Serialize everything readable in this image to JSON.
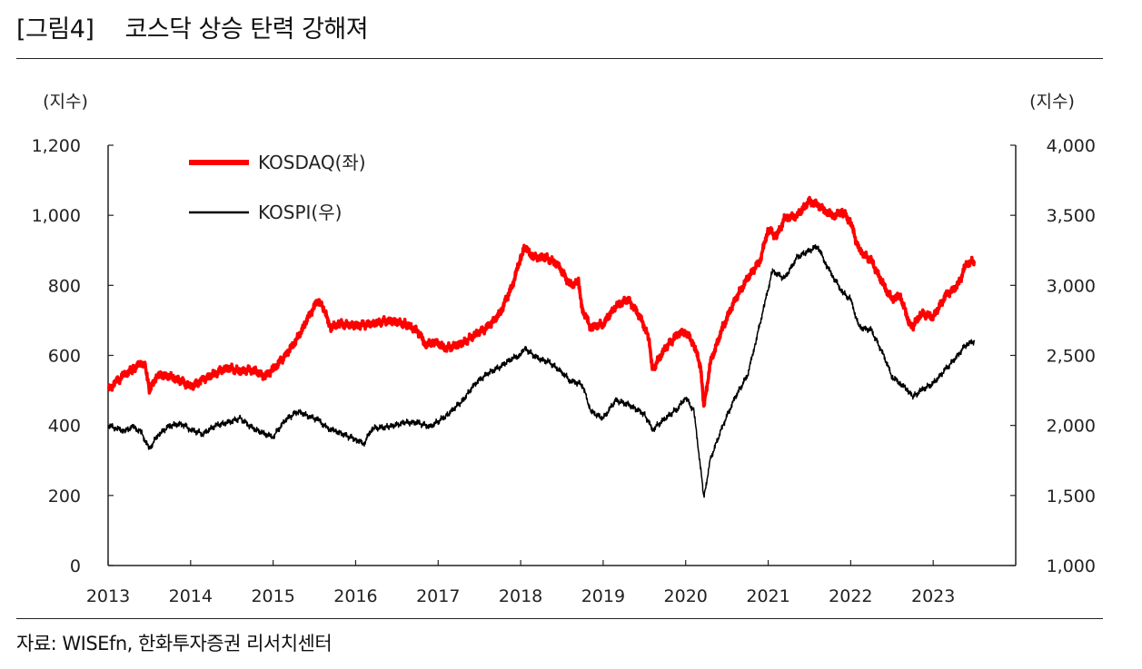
{
  "figure": {
    "label": "[그림4]",
    "title": "코스닥 상승 탄력 강해져",
    "source": "자료: WISEfn, 한화투자증권 리서치센터"
  },
  "chart_data": {
    "type": "line",
    "left_axis_unit": "(지수)",
    "right_axis_unit": "(지수)",
    "left_ylim": [
      0,
      1200
    ],
    "right_ylim": [
      1000,
      4000
    ],
    "left_ticks": [
      "0",
      "200",
      "400",
      "600",
      "800",
      "1,000",
      "1,200"
    ],
    "right_ticks": [
      "1,000",
      "1,500",
      "2,000",
      "2,500",
      "3,000",
      "3,500",
      "4,000"
    ],
    "x_ticks": [
      "2013",
      "2014",
      "2015",
      "2016",
      "2017",
      "2018",
      "2019",
      "2020",
      "2021",
      "2022",
      "2023"
    ],
    "xlim": [
      2013.0,
      2024.0
    ],
    "grid": false,
    "legend_position": "top-left",
    "series": [
      {
        "name": "KOSDAQ(좌)",
        "axis": "left",
        "color": "#ff0000",
        "x": [
          2013.0,
          2013.1,
          2013.2,
          2013.3,
          2013.4,
          2013.45,
          2013.5,
          2013.6,
          2013.75,
          2013.9,
          2014.0,
          2014.15,
          2014.3,
          2014.45,
          2014.6,
          2014.75,
          2014.9,
          2015.0,
          2015.15,
          2015.3,
          2015.45,
          2015.55,
          2015.6,
          2015.7,
          2015.8,
          2016.0,
          2016.2,
          2016.4,
          2016.6,
          2016.75,
          2016.85,
          2016.95,
          2017.1,
          2017.3,
          2017.45,
          2017.6,
          2017.75,
          2017.9,
          2018.0,
          2018.05,
          2018.15,
          2018.3,
          2018.45,
          2018.6,
          2018.7,
          2018.75,
          2018.85,
          2019.0,
          2019.15,
          2019.3,
          2019.45,
          2019.55,
          2019.6,
          2019.75,
          2019.9,
          2020.0,
          2020.1,
          2020.18,
          2020.22,
          2020.3,
          2020.45,
          2020.6,
          2020.75,
          2020.9,
          2021.0,
          2021.1,
          2021.2,
          2021.35,
          2021.5,
          2021.6,
          2021.7,
          2021.8,
          2021.9,
          2022.0,
          2022.1,
          2022.25,
          2022.4,
          2022.5,
          2022.6,
          2022.7,
          2022.75,
          2022.85,
          2023.0,
          2023.15,
          2023.3,
          2023.4,
          2023.5
        ],
        "values": [
          500,
          525,
          545,
          560,
          580,
          575,
          500,
          545,
          540,
          525,
          510,
          530,
          550,
          565,
          555,
          560,
          540,
          560,
          600,
          650,
          720,
          760,
          740,
          680,
          690,
          685,
          690,
          700,
          690,
          670,
          630,
          640,
          620,
          635,
          660,
          680,
          720,
          800,
          880,
          910,
          880,
          880,
          860,
          800,
          810,
          730,
          680,
          690,
          740,
          760,
          710,
          650,
          560,
          620,
          660,
          670,
          630,
          570,
          450,
          580,
          680,
          760,
          820,
          870,
          960,
          940,
          990,
          1000,
          1040,
          1030,
          1010,
          1000,
          1010,
          980,
          900,
          870,
          800,
          760,
          770,
          700,
          680,
          720,
          710,
          770,
          800,
          860,
          870
        ]
      },
      {
        "name": "KOSPI(우)",
        "axis": "right",
        "color": "#000000",
        "x": [
          2013.0,
          2013.1,
          2013.2,
          2013.3,
          2013.4,
          2013.5,
          2013.6,
          2013.75,
          2013.9,
          2014.0,
          2014.15,
          2014.3,
          2014.45,
          2014.6,
          2014.75,
          2014.9,
          2015.0,
          2015.15,
          2015.3,
          2015.45,
          2015.55,
          2015.65,
          2015.75,
          2016.0,
          2016.1,
          2016.2,
          2016.4,
          2016.6,
          2016.75,
          2016.9,
          2017.1,
          2017.3,
          2017.45,
          2017.6,
          2017.75,
          2017.9,
          2018.0,
          2018.05,
          2018.2,
          2018.35,
          2018.5,
          2018.6,
          2018.75,
          2018.85,
          2019.0,
          2019.15,
          2019.3,
          2019.5,
          2019.6,
          2019.75,
          2019.9,
          2020.0,
          2020.1,
          2020.18,
          2020.22,
          2020.3,
          2020.45,
          2020.6,
          2020.75,
          2020.85,
          2020.95,
          2021.05,
          2021.2,
          2021.35,
          2021.5,
          2021.6,
          2021.7,
          2021.8,
          2021.9,
          2022.0,
          2022.1,
          2022.25,
          2022.4,
          2022.5,
          2022.6,
          2022.7,
          2022.75,
          2022.85,
          2023.0,
          2023.15,
          2023.3,
          2023.4,
          2023.5
        ],
        "values": [
          2000,
          1980,
          1960,
          1990,
          1950,
          1830,
          1930,
          2000,
          2010,
          1970,
          1940,
          2000,
          2020,
          2050,
          1980,
          1940,
          1920,
          2040,
          2100,
          2060,
          2040,
          1980,
          1960,
          1900,
          1870,
          1980,
          1990,
          2020,
          2020,
          1990,
          2070,
          2180,
          2300,
          2370,
          2420,
          2480,
          2500,
          2550,
          2480,
          2450,
          2380,
          2320,
          2290,
          2100,
          2050,
          2180,
          2150,
          2080,
          1970,
          2050,
          2120,
          2200,
          2100,
          1700,
          1480,
          1760,
          2000,
          2200,
          2360,
          2600,
          2850,
          3100,
          3050,
          3200,
          3250,
          3280,
          3150,
          3050,
          2950,
          2900,
          2700,
          2680,
          2500,
          2350,
          2300,
          2250,
          2200,
          2250,
          2300,
          2400,
          2500,
          2580,
          2600
        ]
      }
    ]
  }
}
